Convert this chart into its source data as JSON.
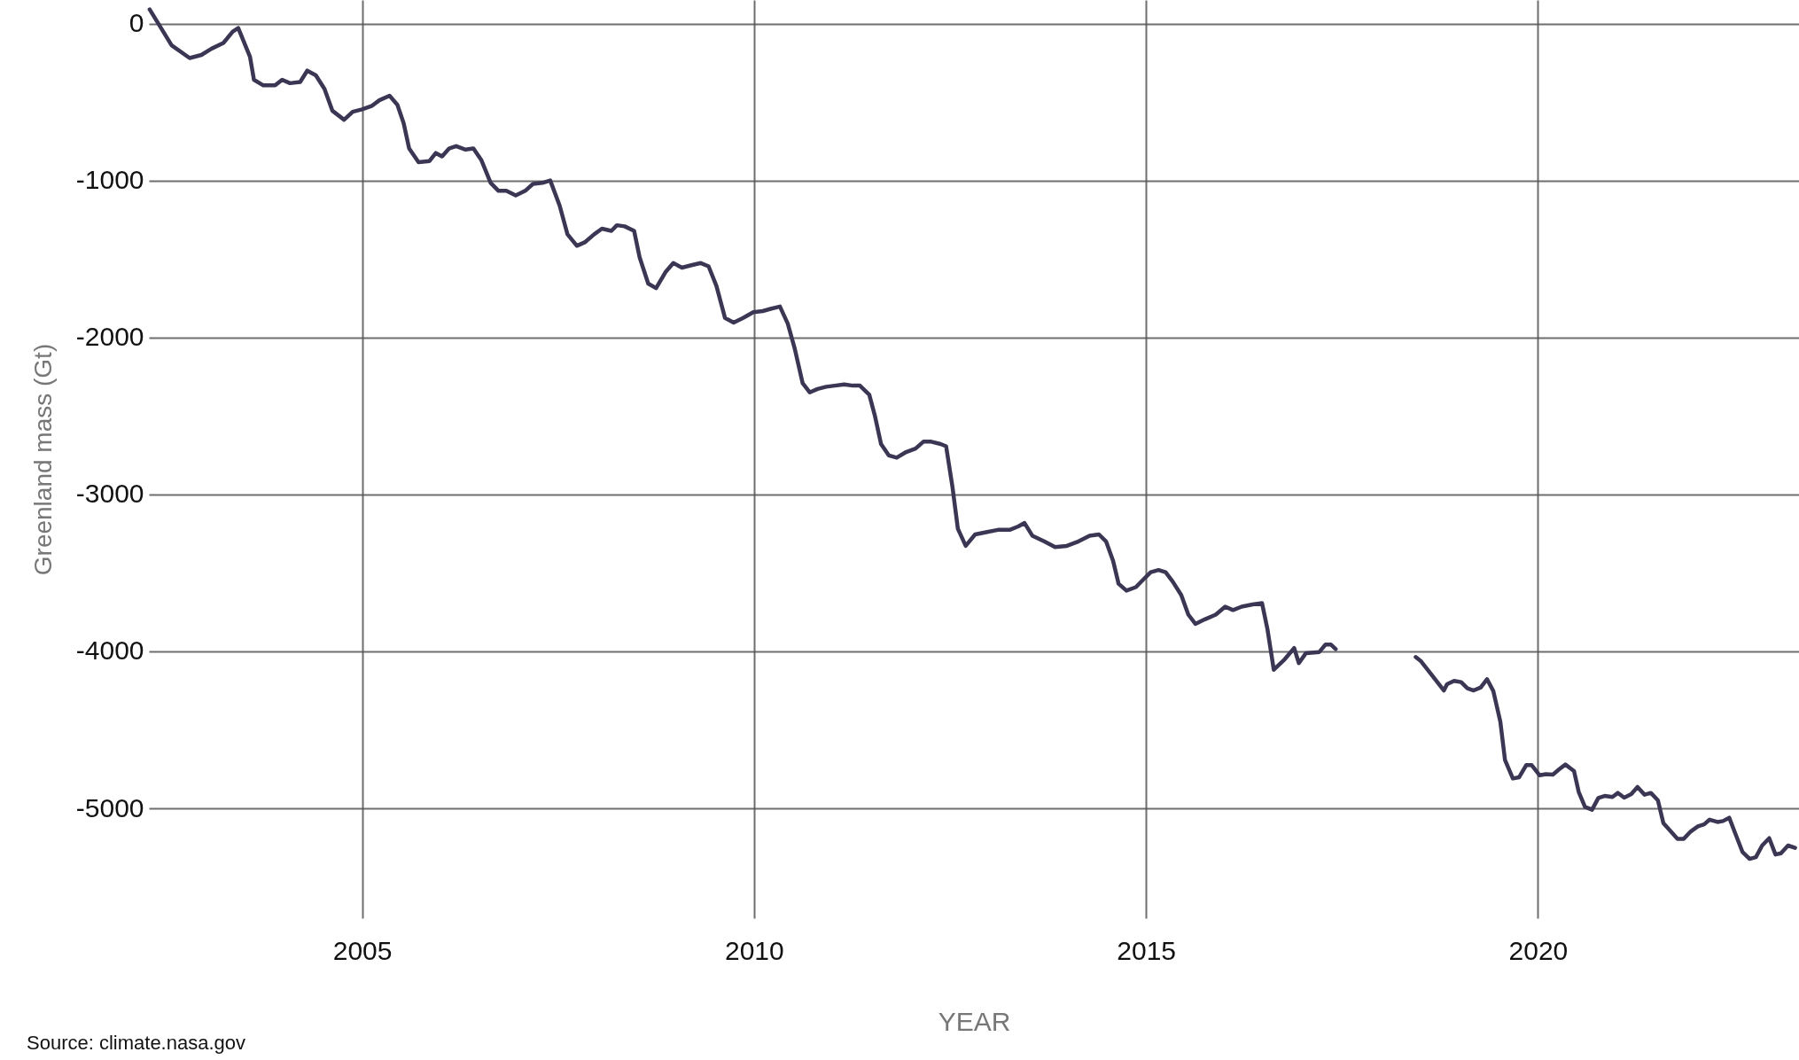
{
  "chart_data": {
    "type": "line",
    "xlabel": "YEAR",
    "ylabel": "Greenland mass (Gt)",
    "annotations": [
      "Source: climate.nasa.gov"
    ],
    "xlim": [
      2002.28,
      2023.33
    ],
    "xticks": [
      2005,
      2010,
      2015,
      2020
    ],
    "ylim": [
      -5700,
      150
    ],
    "yticks": [
      -5000,
      -4000,
      -3000,
      -2000,
      -1000,
      0
    ],
    "grid": true,
    "marker": "none",
    "line_style": "solid",
    "x": [
      2002.29,
      2002.57,
      2002.8,
      2002.95,
      2003.08,
      2003.23,
      2003.35,
      2003.42,
      2003.57,
      2003.62,
      2003.74,
      2003.89,
      2003.98,
      2004.08,
      2004.21,
      2004.3,
      2004.41,
      2004.52,
      2004.62,
      2004.77,
      2004.88,
      2005.0,
      2005.12,
      2005.22,
      2005.35,
      2005.45,
      2005.53,
      2005.6,
      2005.72,
      2005.86,
      2005.94,
      2006.02,
      2006.11,
      2006.2,
      2006.32,
      2006.42,
      2006.52,
      2006.64,
      2006.74,
      2006.84,
      2006.96,
      2007.08,
      2007.18,
      2007.3,
      2007.4,
      2007.52,
      2007.62,
      2007.74,
      2007.84,
      2007.96,
      2008.06,
      2008.18,
      2008.25,
      2008.35,
      2008.47,
      2008.54,
      2008.65,
      2008.75,
      2008.87,
      2008.97,
      2009.08,
      2009.2,
      2009.32,
      2009.42,
      2009.52,
      2009.63,
      2009.74,
      2009.86,
      2009.99,
      2010.11,
      2010.21,
      2010.33,
      2010.43,
      2010.52,
      2010.62,
      2010.71,
      2010.81,
      2010.92,
      2011.03,
      2011.15,
      2011.26,
      2011.35,
      2011.47,
      2011.54,
      2011.62,
      2011.72,
      2011.82,
      2011.94,
      2012.06,
      2012.16,
      2012.26,
      2012.38,
      2012.45,
      2012.53,
      2012.6,
      2012.7,
      2012.82,
      2012.96,
      2013.11,
      2013.26,
      2013.37,
      2013.45,
      2013.55,
      2013.7,
      2013.84,
      2013.99,
      2014.14,
      2014.28,
      2014.4,
      2014.49,
      2014.58,
      2014.65,
      2014.75,
      2014.87,
      2014.97,
      2015.06,
      2015.16,
      2015.25,
      2015.34,
      2015.45,
      2015.54,
      2015.63,
      2015.75,
      2015.89,
      2016.01,
      2016.11,
      2016.22,
      2016.36,
      2016.48,
      2016.55,
      2016.63,
      2016.77,
      2016.89,
      2016.95,
      2017.04,
      2017.21,
      2017.29,
      2017.36,
      2017.42,
      2017.95,
      2018.44,
      2018.51,
      2018.8,
      2018.84,
      2018.93,
      2019.02,
      2019.1,
      2019.18,
      2019.27,
      2019.35,
      2019.43,
      2019.52,
      2019.58,
      2019.68,
      2019.76,
      2019.85,
      2019.92,
      2020.02,
      2020.1,
      2020.19,
      2020.27,
      2020.35,
      2020.46,
      2020.52,
      2020.6,
      2020.69,
      2020.77,
      2020.85,
      2020.95,
      2021.02,
      2021.1,
      2021.19,
      2021.27,
      2021.36,
      2021.44,
      2021.53,
      2021.6,
      2021.78,
      2021.86,
      2021.95,
      2022.04,
      2022.12,
      2022.19,
      2022.29,
      2022.36,
      2022.44,
      2022.51,
      2022.61,
      2022.7,
      2022.78,
      2022.86,
      2022.95,
      2023.03,
      2023.1,
      2023.19,
      2023.28
    ],
    "series": [
      {
        "color": "#3b3653",
        "values": [
          90,
          -139,
          -220,
          -200,
          -160,
          -124,
          -51,
          -29,
          -212,
          -358,
          -394,
          -394,
          -358,
          -380,
          -372,
          -300,
          -330,
          -416,
          -555,
          -613,
          -562,
          -547,
          -526,
          -489,
          -460,
          -518,
          -635,
          -796,
          -883,
          -876,
          -825,
          -847,
          -796,
          -781,
          -803,
          -796,
          -869,
          -1015,
          -1066,
          -1066,
          -1095,
          -1066,
          -1022,
          -1015,
          -1000,
          -1160,
          -1343,
          -1416,
          -1394,
          -1343,
          -1307,
          -1321,
          -1285,
          -1292,
          -1321,
          -1489,
          -1657,
          -1686,
          -1584,
          -1526,
          -1555,
          -1540,
          -1526,
          -1547,
          -1672,
          -1876,
          -1905,
          -1876,
          -1839,
          -1832,
          -1818,
          -1803,
          -1912,
          -2073,
          -2292,
          -2350,
          -2328,
          -2314,
          -2307,
          -2299,
          -2307,
          -2307,
          -2365,
          -2496,
          -2679,
          -2752,
          -2766,
          -2730,
          -2708,
          -2664,
          -2664,
          -2679,
          -2693,
          -2949,
          -3219,
          -3328,
          -3255,
          -3241,
          -3226,
          -3226,
          -3204,
          -3182,
          -3263,
          -3299,
          -3336,
          -3328,
          -3299,
          -3263,
          -3255,
          -3299,
          -3423,
          -3569,
          -3613,
          -3591,
          -3540,
          -3496,
          -3482,
          -3496,
          -3555,
          -3642,
          -3766,
          -3825,
          -3796,
          -3766,
          -3715,
          -3737,
          -3715,
          -3701,
          -3693,
          -3861,
          -4117,
          -4050,
          -3979,
          -4075,
          -4011,
          -4004,
          -3957,
          -3957,
          -3985,
          null,
          -4036,
          -4064,
          -4249,
          -4209,
          -4188,
          -4196,
          -4235,
          -4249,
          -4230,
          -4177,
          -4252,
          -4448,
          -4693,
          -4810,
          -4802,
          -4725,
          -4725,
          -4789,
          -4782,
          -4785,
          -4751,
          -4721,
          -4763,
          -4896,
          -4991,
          -5009,
          -4934,
          -4921,
          -4928,
          -4902,
          -4932,
          -4910,
          -4864,
          -4913,
          -4902,
          -4949,
          -5094,
          -5194,
          -5194,
          -5147,
          -5115,
          -5102,
          -5072,
          -5087,
          -5081,
          -5060,
          -5151,
          -5279,
          -5322,
          -5311,
          -5237,
          -5190,
          -5294,
          -5286,
          -5237,
          -5252
        ]
      }
    ]
  }
}
